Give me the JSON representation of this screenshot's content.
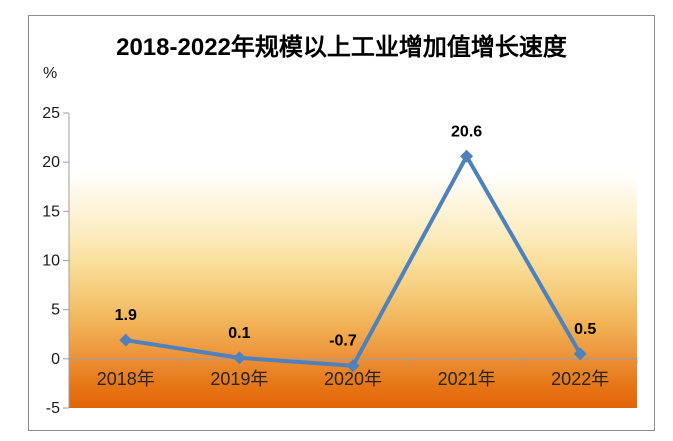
{
  "chart_data": {
    "type": "line",
    "title": "2018-2022年规模以上工业增加值增长速度",
    "ylabel": "%",
    "xlabel": "",
    "categories": [
      "2018年",
      "2019年",
      "2020年",
      "2021年",
      "2022年"
    ],
    "values": [
      1.9,
      0.1,
      -0.7,
      20.6,
      0.5
    ],
    "data_labels": [
      "1.9",
      "0.1",
      "-0.7",
      "20.6",
      "0.5"
    ],
    "ylim": [
      -5,
      25
    ],
    "yticks": [
      25,
      20,
      15,
      10,
      5,
      0,
      -5
    ],
    "grid": false,
    "legend": "none",
    "marker": "diamond",
    "label_dx": [
      0,
      0,
      -10,
      0,
      5
    ],
    "colors": {
      "line": "#4F81BD",
      "marker": "#4F81BD",
      "axis_line": "#9E9E9E",
      "title_text": "#000000",
      "data_label_text": "#000000",
      "frame_border": "#8C8C8C",
      "plot_gradient": [
        {
          "offset": 0.0,
          "color": "#FFFFFF"
        },
        {
          "offset": 0.2,
          "color": "#FFFFFF"
        },
        {
          "offset": 0.3,
          "color": "#FEF6E0"
        },
        {
          "offset": 0.4,
          "color": "#FCEDC2"
        },
        {
          "offset": 0.5,
          "color": "#FAE09E"
        },
        {
          "offset": 0.62,
          "color": "#F5C977"
        },
        {
          "offset": 0.72,
          "color": "#F1B155"
        },
        {
          "offset": 0.83,
          "color": "#EC9138"
        },
        {
          "offset": 0.92,
          "color": "#E67717"
        },
        {
          "offset": 1.0,
          "color": "#E26409"
        }
      ]
    }
  }
}
